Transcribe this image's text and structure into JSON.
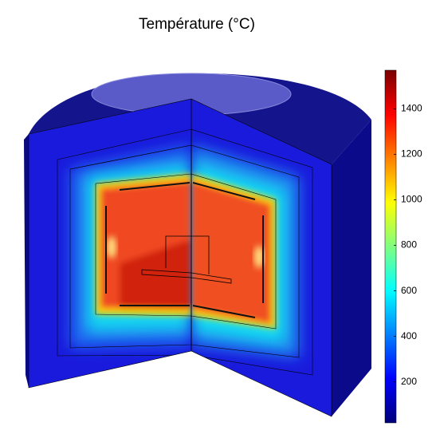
{
  "chart_data": {
    "type": "colorbar",
    "title": "Température (°C)",
    "zlim": [
      20,
      1570
    ],
    "zticks": [
      200,
      400,
      600,
      800,
      1000,
      1200,
      1400
    ],
    "colormap": [
      "#00007a",
      "#0000ff",
      "#0080ff",
      "#00ffff",
      "#80ff80",
      "#ffff00",
      "#ff8000",
      "#ff0000",
      "#7a0000"
    ]
  }
}
